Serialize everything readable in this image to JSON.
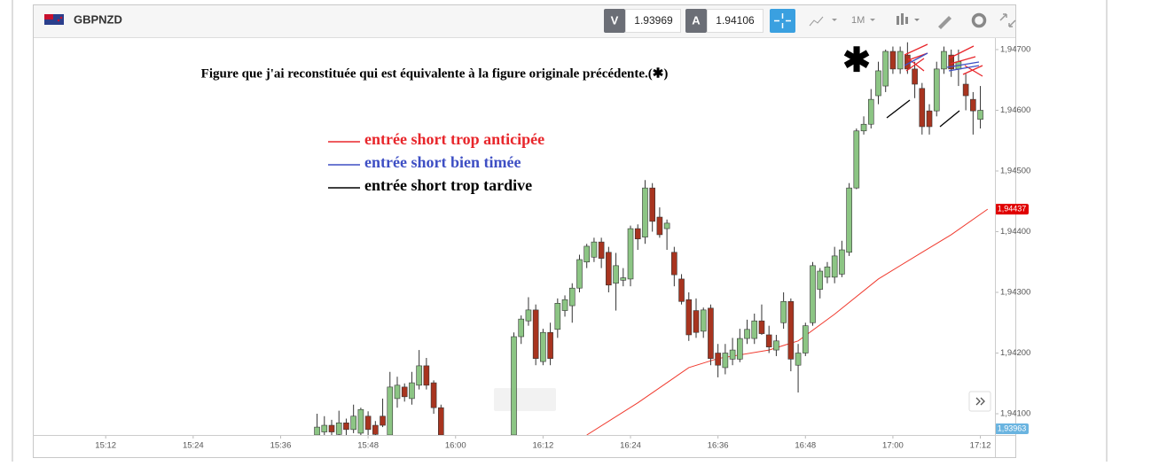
{
  "header": {
    "symbol": "GBPNZD",
    "sell_label": "V",
    "sell_price": "1.93969",
    "buy_label": "A",
    "buy_price": "1.94106",
    "timeframe": "1M"
  },
  "chart_data": {
    "type": "candlestick",
    "title": "Figure que j'ai reconstituée qui est équivalente à la figure originale précédente.(✱)",
    "marker_symbol": "✱",
    "legend": [
      {
        "text": "entrée short trop anticipée",
        "color": "#e8262b"
      },
      {
        "text": "entrée short bien timée",
        "color": "#3e4fc4"
      },
      {
        "text": "entrée short trop tardive",
        "color": "#000000"
      }
    ],
    "up_color": "#8cc584",
    "down_color": "#a8341f",
    "x": [
      "15:41",
      "15:42",
      "15:43",
      "15:44",
      "15:45",
      "15:46",
      "15:47",
      "15:48",
      "15:49",
      "15:50",
      "15:51",
      "15:52",
      "15:53",
      "15:54",
      "15:55",
      "15:56",
      "15:57",
      "15:58",
      "16:08",
      "16:09",
      "16:10",
      "16:11",
      "16:12",
      "16:13",
      "16:14",
      "16:15",
      "16:16",
      "16:17",
      "16:18",
      "16:19",
      "16:20",
      "16:21",
      "16:22",
      "16:23",
      "16:24",
      "16:25",
      "16:26",
      "16:27",
      "16:28",
      "16:29",
      "16:30",
      "16:31",
      "16:32",
      "16:33",
      "16:34",
      "16:35",
      "16:36",
      "16:37",
      "16:38",
      "16:39",
      "16:40",
      "16:41",
      "16:42",
      "16:43",
      "16:44",
      "16:45",
      "16:46",
      "16:47",
      "16:48",
      "16:49",
      "16:50",
      "16:51",
      "16:52",
      "16:53",
      "16:54",
      "16:55",
      "16:56",
      "16:57",
      "16:58",
      "16:59",
      "17:00",
      "17:01",
      "17:02",
      "17:03",
      "17:04",
      "17:05",
      "17:06",
      "17:07",
      "17:08",
      "17:09",
      "17:10",
      "17:11",
      "17:12"
    ],
    "open": [
      1.94065,
      1.9407,
      1.94081,
      1.94066,
      1.94085,
      1.94074,
      1.94068,
      1.94096,
      1.94081,
      1.94096,
      1.94065,
      1.94125,
      1.94144,
      1.94125,
      1.94147,
      1.94179,
      1.94151,
      1.9411,
      1.94065,
      1.94227,
      1.94253,
      1.94271,
      1.94186,
      1.94234,
      1.94239,
      1.9427,
      1.94278,
      1.94307,
      1.9435,
      1.94358,
      1.94383,
      1.94366,
      1.94315,
      1.9432,
      1.94322,
      1.94405,
      1.94391,
      1.94472,
      1.94424,
      1.94405,
      1.94366,
      1.94322,
      1.94288,
      1.9427,
      1.94236,
      1.94274,
      1.942,
      1.94176,
      1.9419,
      1.9419,
      1.94224,
      1.94224,
      1.94253,
      1.9423,
      1.94205,
      1.9425,
      1.94285,
      1.9418,
      1.942,
      1.9425,
      1.94305,
      1.94325,
      1.94325,
      1.9433,
      1.94366,
      1.94472,
      1.94566,
      1.94577,
      1.94624,
      1.9464,
      1.94697,
      1.94668,
      1.94691,
      1.94668,
      1.94636,
      1.94599,
      1.94599,
      1.94668,
      1.94691,
      1.94668,
      1.94643,
      1.94618,
      1.94585
    ],
    "high": [
      1.941,
      1.94096,
      1.9409,
      1.94105,
      1.94092,
      1.94115,
      1.9411,
      1.94104,
      1.94088,
      1.94125,
      1.94169,
      1.94161,
      1.9415,
      1.94169,
      1.94205,
      1.94192,
      1.94155,
      1.94115,
      1.94234,
      1.94262,
      1.94292,
      1.9428,
      1.9424,
      1.9425,
      1.9429,
      1.94295,
      1.94315,
      1.94362,
      1.9438,
      1.9439,
      1.9439,
      1.94375,
      1.94365,
      1.9434,
      1.9441,
      1.94412,
      1.94485,
      1.9448,
      1.9444,
      1.9442,
      1.94375,
      1.9433,
      1.943,
      1.9429,
      1.94275,
      1.9428,
      1.94215,
      1.94215,
      1.94225,
      1.9424,
      1.94255,
      1.94265,
      1.9428,
      1.94245,
      1.9423,
      1.943,
      1.9429,
      1.94215,
      1.9425,
      1.9435,
      1.9434,
      1.9435,
      1.94375,
      1.94385,
      1.9448,
      1.9457,
      1.9459,
      1.94635,
      1.9468,
      1.947,
      1.94705,
      1.94705,
      1.94712,
      1.9468,
      1.94645,
      1.9461,
      1.9468,
      1.94705,
      1.947,
      1.947,
      1.9466,
      1.9463,
      1.9464
    ],
    "low": [
      1.9406,
      1.94062,
      1.9406,
      1.9406,
      1.94062,
      1.94068,
      1.9406,
      1.94065,
      1.9406,
      1.94078,
      1.9406,
      1.9411,
      1.9412,
      1.94115,
      1.9414,
      1.9414,
      1.941,
      1.9406,
      1.94058,
      1.94215,
      1.94245,
      1.9418,
      1.9418,
      1.9418,
      1.94225,
      1.9426,
      1.9425,
      1.943,
      1.9434,
      1.9435,
      1.9434,
      1.943,
      1.9427,
      1.9431,
      1.9431,
      1.9437,
      1.9438,
      1.944,
      1.9439,
      1.9437,
      1.9431,
      1.9428,
      1.9422,
      1.94225,
      1.94225,
      1.9418,
      1.9416,
      1.94165,
      1.9418,
      1.94185,
      1.94215,
      1.94215,
      1.9423,
      1.942,
      1.94195,
      1.9424,
      1.9417,
      1.94135,
      1.94195,
      1.94245,
      1.9429,
      1.94315,
      1.94315,
      1.94325,
      1.9436,
      1.9447,
      1.9456,
      1.9457,
      1.9461,
      1.9463,
      1.9466,
      1.9466,
      1.9466,
      1.9462,
      1.9456,
      1.9456,
      1.9459,
      1.9466,
      1.94655,
      1.9464,
      1.946,
      1.9456,
      1.9457
    ],
    "close": [
      1.94078,
      1.94081,
      1.9407,
      1.94085,
      1.94074,
      1.94096,
      1.94107,
      1.94074,
      1.94066,
      1.94081,
      1.94144,
      1.94147,
      1.94128,
      1.94151,
      1.94179,
      1.94147,
      1.9411,
      1.94065,
      1.94227,
      1.94256,
      1.94271,
      1.94191,
      1.94234,
      1.94191,
      1.94282,
      1.94288,
      1.94307,
      1.94354,
      1.94376,
      1.94383,
      1.94356,
      1.94312,
      1.94344,
      1.94324,
      1.94405,
      1.94388,
      1.94472,
      1.94417,
      1.94395,
      1.94414,
      1.94329,
      1.94285,
      1.9423,
      1.94234,
      1.94271,
      1.94191,
      1.9418,
      1.942,
      1.94205,
      1.94224,
      1.94239,
      1.94253,
      1.94232,
      1.9421,
      1.9422,
      1.94285,
      1.9419,
      1.942,
      1.94245,
      1.94344,
      1.94335,
      1.94342,
      1.9436,
      1.9437,
      1.94472,
      1.94566,
      1.94577,
      1.94618,
      1.94665,
      1.94697,
      1.94668,
      1.94697,
      1.94668,
      1.94643,
      1.94573,
      1.94573,
      1.94668,
      1.94697,
      1.94668,
      1.9468,
      1.94624,
      1.94599,
      1.946
    ],
    "ma": {
      "color": "#f03a2e",
      "x": [
        "16:18",
        "16:25",
        "16:32",
        "16:36",
        "16:43",
        "16:47",
        "16:52",
        "16:58",
        "17:04",
        "17:08",
        "17:13"
      ],
      "values": [
        1.94065,
        1.94118,
        1.94176,
        1.94191,
        1.94205,
        1.9422,
        1.94264,
        1.94322,
        1.94366,
        1.94395,
        1.94437
      ]
    },
    "xlim": [
      "15:02",
      "17:14"
    ],
    "xticks": [
      "15:12",
      "15:24",
      "15:36",
      "15:48",
      "16:00",
      "16:12",
      "16:24",
      "16:36",
      "16:48",
      "17:00",
      "17:12"
    ],
    "ylim": [
      1.94065,
      1.94716
    ],
    "yticks": [
      {
        "value": 1.941,
        "label": "1,94100"
      },
      {
        "value": 1.942,
        "label": "1,94200"
      },
      {
        "value": 1.943,
        "label": "1,94300"
      },
      {
        "value": 1.944,
        "label": "1,94400"
      },
      {
        "value": 1.945,
        "label": "1,94500"
      },
      {
        "value": 1.946,
        "label": "1,94600"
      },
      {
        "value": 1.947,
        "label": "1,94700"
      }
    ],
    "price_marker": {
      "value": 1.94437,
      "label": "1,94437",
      "color": "#e00000"
    },
    "bid_marker": {
      "label": "1,93963",
      "color": "#6ab4e0"
    }
  }
}
